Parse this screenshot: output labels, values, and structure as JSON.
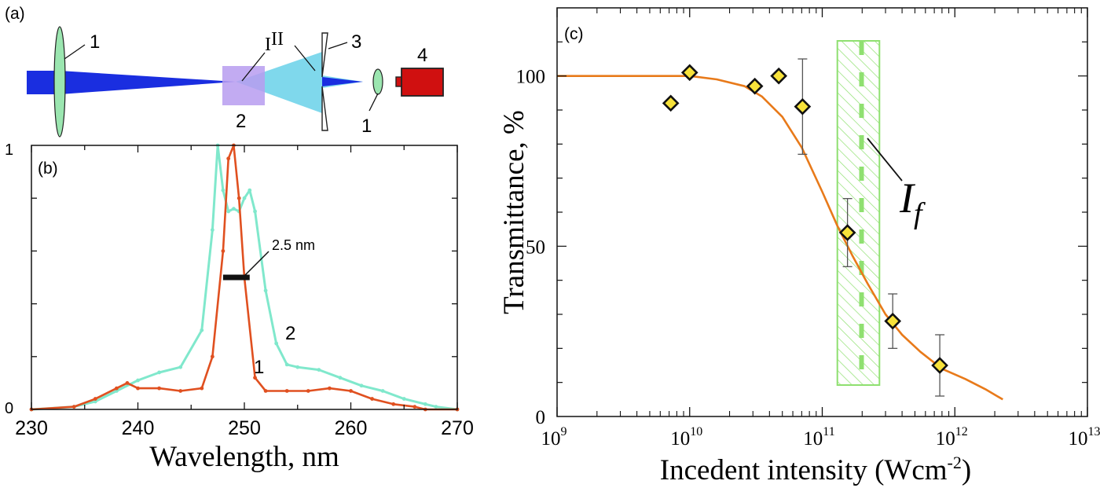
{
  "panel_a": {
    "label": "(a)",
    "callouts": {
      "lens_left": "1",
      "roman_one": "I",
      "roman_two": "II",
      "slit": "3",
      "sample": "2",
      "lens_right": "1",
      "detector": "4"
    },
    "colors": {
      "beam": "#1a2ee0",
      "beam_light": "#7fd8ec",
      "lens": "#9be6b0",
      "sample": "#b79cf0",
      "detector": "#d01010"
    }
  },
  "chart_data": [
    {
      "type": "line",
      "panel_label": "(b)",
      "xlabel": "Wavelength, nm",
      "ylabel": "",
      "xlim": [
        230,
        270
      ],
      "ylim": [
        0,
        1
      ],
      "x_ticks": [
        "230",
        "240",
        "250",
        "260",
        "270"
      ],
      "y_ticks": [
        "0",
        "1"
      ],
      "series": [
        {
          "name": "2",
          "color": "#80e8cc",
          "x": [
            230,
            234,
            236,
            238,
            240,
            242,
            244,
            246,
            247,
            247.5,
            248,
            248.5,
            249,
            249.5,
            250,
            250.5,
            251,
            252,
            253,
            254,
            255,
            257,
            259,
            261,
            263,
            265,
            267,
            268,
            270
          ],
          "y": [
            0.0,
            0.01,
            0.03,
            0.07,
            0.11,
            0.14,
            0.16,
            0.3,
            0.68,
            1.0,
            0.83,
            0.75,
            0.76,
            0.75,
            0.8,
            0.83,
            0.75,
            0.45,
            0.25,
            0.17,
            0.16,
            0.15,
            0.12,
            0.09,
            0.07,
            0.04,
            0.02,
            0.01,
            0.0
          ]
        },
        {
          "name": "1",
          "color": "#e05020",
          "x": [
            230,
            234,
            236,
            238,
            239,
            240,
            242,
            244,
            246,
            247,
            248,
            248.5,
            249,
            249.5,
            250,
            251,
            252,
            254,
            256,
            258,
            260,
            262,
            264,
            266,
            267,
            270
          ],
          "y": [
            0.0,
            0.01,
            0.04,
            0.08,
            0.1,
            0.08,
            0.08,
            0.07,
            0.08,
            0.2,
            0.6,
            0.95,
            1.0,
            0.8,
            0.5,
            0.12,
            0.07,
            0.07,
            0.07,
            0.08,
            0.07,
            0.04,
            0.02,
            0.01,
            0.0,
            0.0
          ]
        }
      ],
      "annotations": {
        "fwhm": "2.5 nm",
        "fwhm_x": [
          248,
          250.5
        ],
        "fwhm_y": 0.5
      }
    },
    {
      "type": "scatter",
      "panel_label": "(c)",
      "xlabel": "Incedent intensity (Wcm",
      "xlabel_sup": "-2",
      "xlabel_end": ")",
      "ylabel": "Transmittance, %",
      "xscale": "log",
      "xlim": [
        1000000000.0,
        10000000000000.0
      ],
      "ylim": [
        0,
        120
      ],
      "x_ticks": [
        {
          "base": "10",
          "exp": "9"
        },
        {
          "base": "10",
          "exp": "10"
        },
        {
          "base": "10",
          "exp": "11"
        },
        {
          "base": "10",
          "exp": "12"
        },
        {
          "base": "10",
          "exp": "13"
        }
      ],
      "y_ticks": [
        "0",
        "50",
        "100"
      ],
      "points": [
        {
          "x": 7200000000.0,
          "y": 92
        },
        {
          "x": 10000000000.0,
          "y": 101
        },
        {
          "x": 31000000000.0,
          "y": 97
        },
        {
          "x": 47000000000.0,
          "y": 100
        },
        {
          "x": 71000000000.0,
          "y": 91,
          "err": 14
        },
        {
          "x": 155000000000.0,
          "y": 54,
          "err": 10
        },
        {
          "x": 340000000000.0,
          "y": 28,
          "err": 8
        },
        {
          "x": 770000000000.0,
          "y": 15,
          "err": 9
        }
      ],
      "fit": {
        "color": "#e87a1a",
        "x": [
          1000000000.0,
          3000000000.0,
          10000000000.0,
          16000000000.0,
          26000000000.0,
          35000000000.0,
          50000000000.0,
          70000000000.0,
          100000000000.0,
          130000000000.0,
          170000000000.0,
          220000000000.0,
          300000000000.0,
          400000000000.0,
          550000000000.0,
          800000000000.0,
          1200000000000.0,
          1700000000000.0,
          2300000000000.0
        ],
        "y": [
          100,
          100,
          100,
          99,
          97,
          94,
          88,
          79,
          66,
          56,
          47,
          39,
          30,
          24,
          19,
          14,
          11,
          8,
          5
        ]
      },
      "band": {
        "x": [
          130000000000.0,
          270000000000.0
        ],
        "label": "I",
        "label_sub": "f",
        "color": "#8fe070"
      }
    }
  ]
}
